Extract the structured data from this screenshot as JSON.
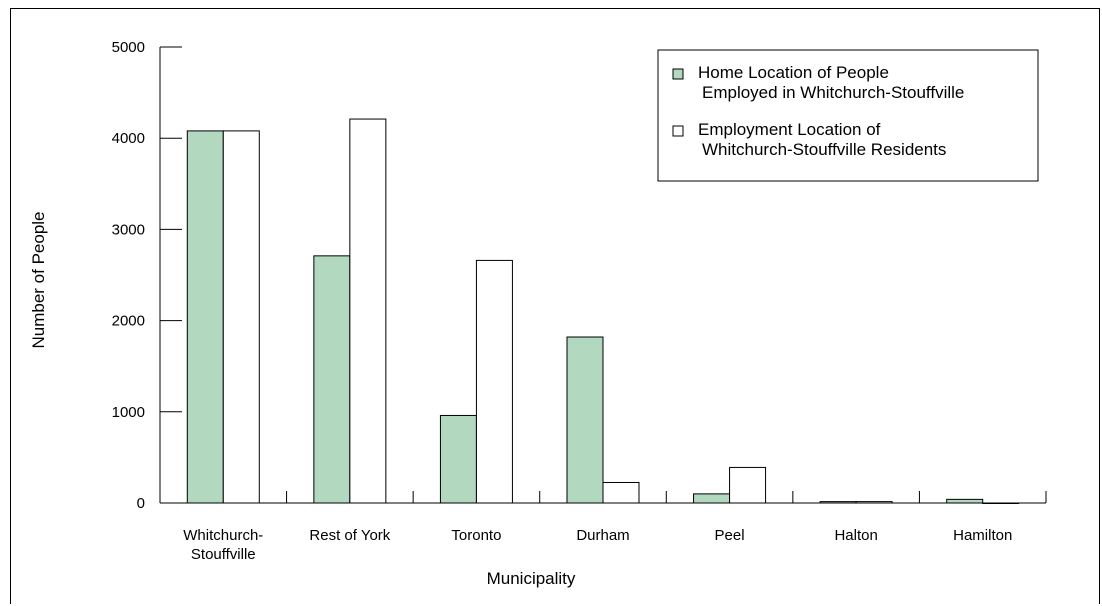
{
  "chart_data": {
    "type": "bar",
    "xlabel": "Municipality",
    "ylabel": "Number of People",
    "ylim": [
      0,
      5000
    ],
    "yticks": [
      0,
      1000,
      2000,
      3000,
      4000,
      5000
    ],
    "categories": [
      [
        "Whitchurch-",
        "Stouffville"
      ],
      [
        "Rest of York"
      ],
      [
        "Toronto"
      ],
      [
        "Durham"
      ],
      [
        "Peel"
      ],
      [
        "Halton"
      ],
      [
        "Hamilton"
      ]
    ],
    "series": [
      {
        "name": [
          "Home Location of People",
          "Employed in Whitchurch-Stouffville"
        ],
        "color": "#b2d8bf",
        "values": [
          4080,
          2710,
          960,
          1820,
          100,
          15,
          40
        ]
      },
      {
        "name": [
          "Employment Location of",
          "Whitchurch-Stouffville Residents"
        ],
        "color": "#ffffff",
        "values": [
          4080,
          4210,
          2660,
          225,
          390,
          15,
          0
        ]
      }
    ],
    "grid": false,
    "legend_position": "top-right"
  }
}
